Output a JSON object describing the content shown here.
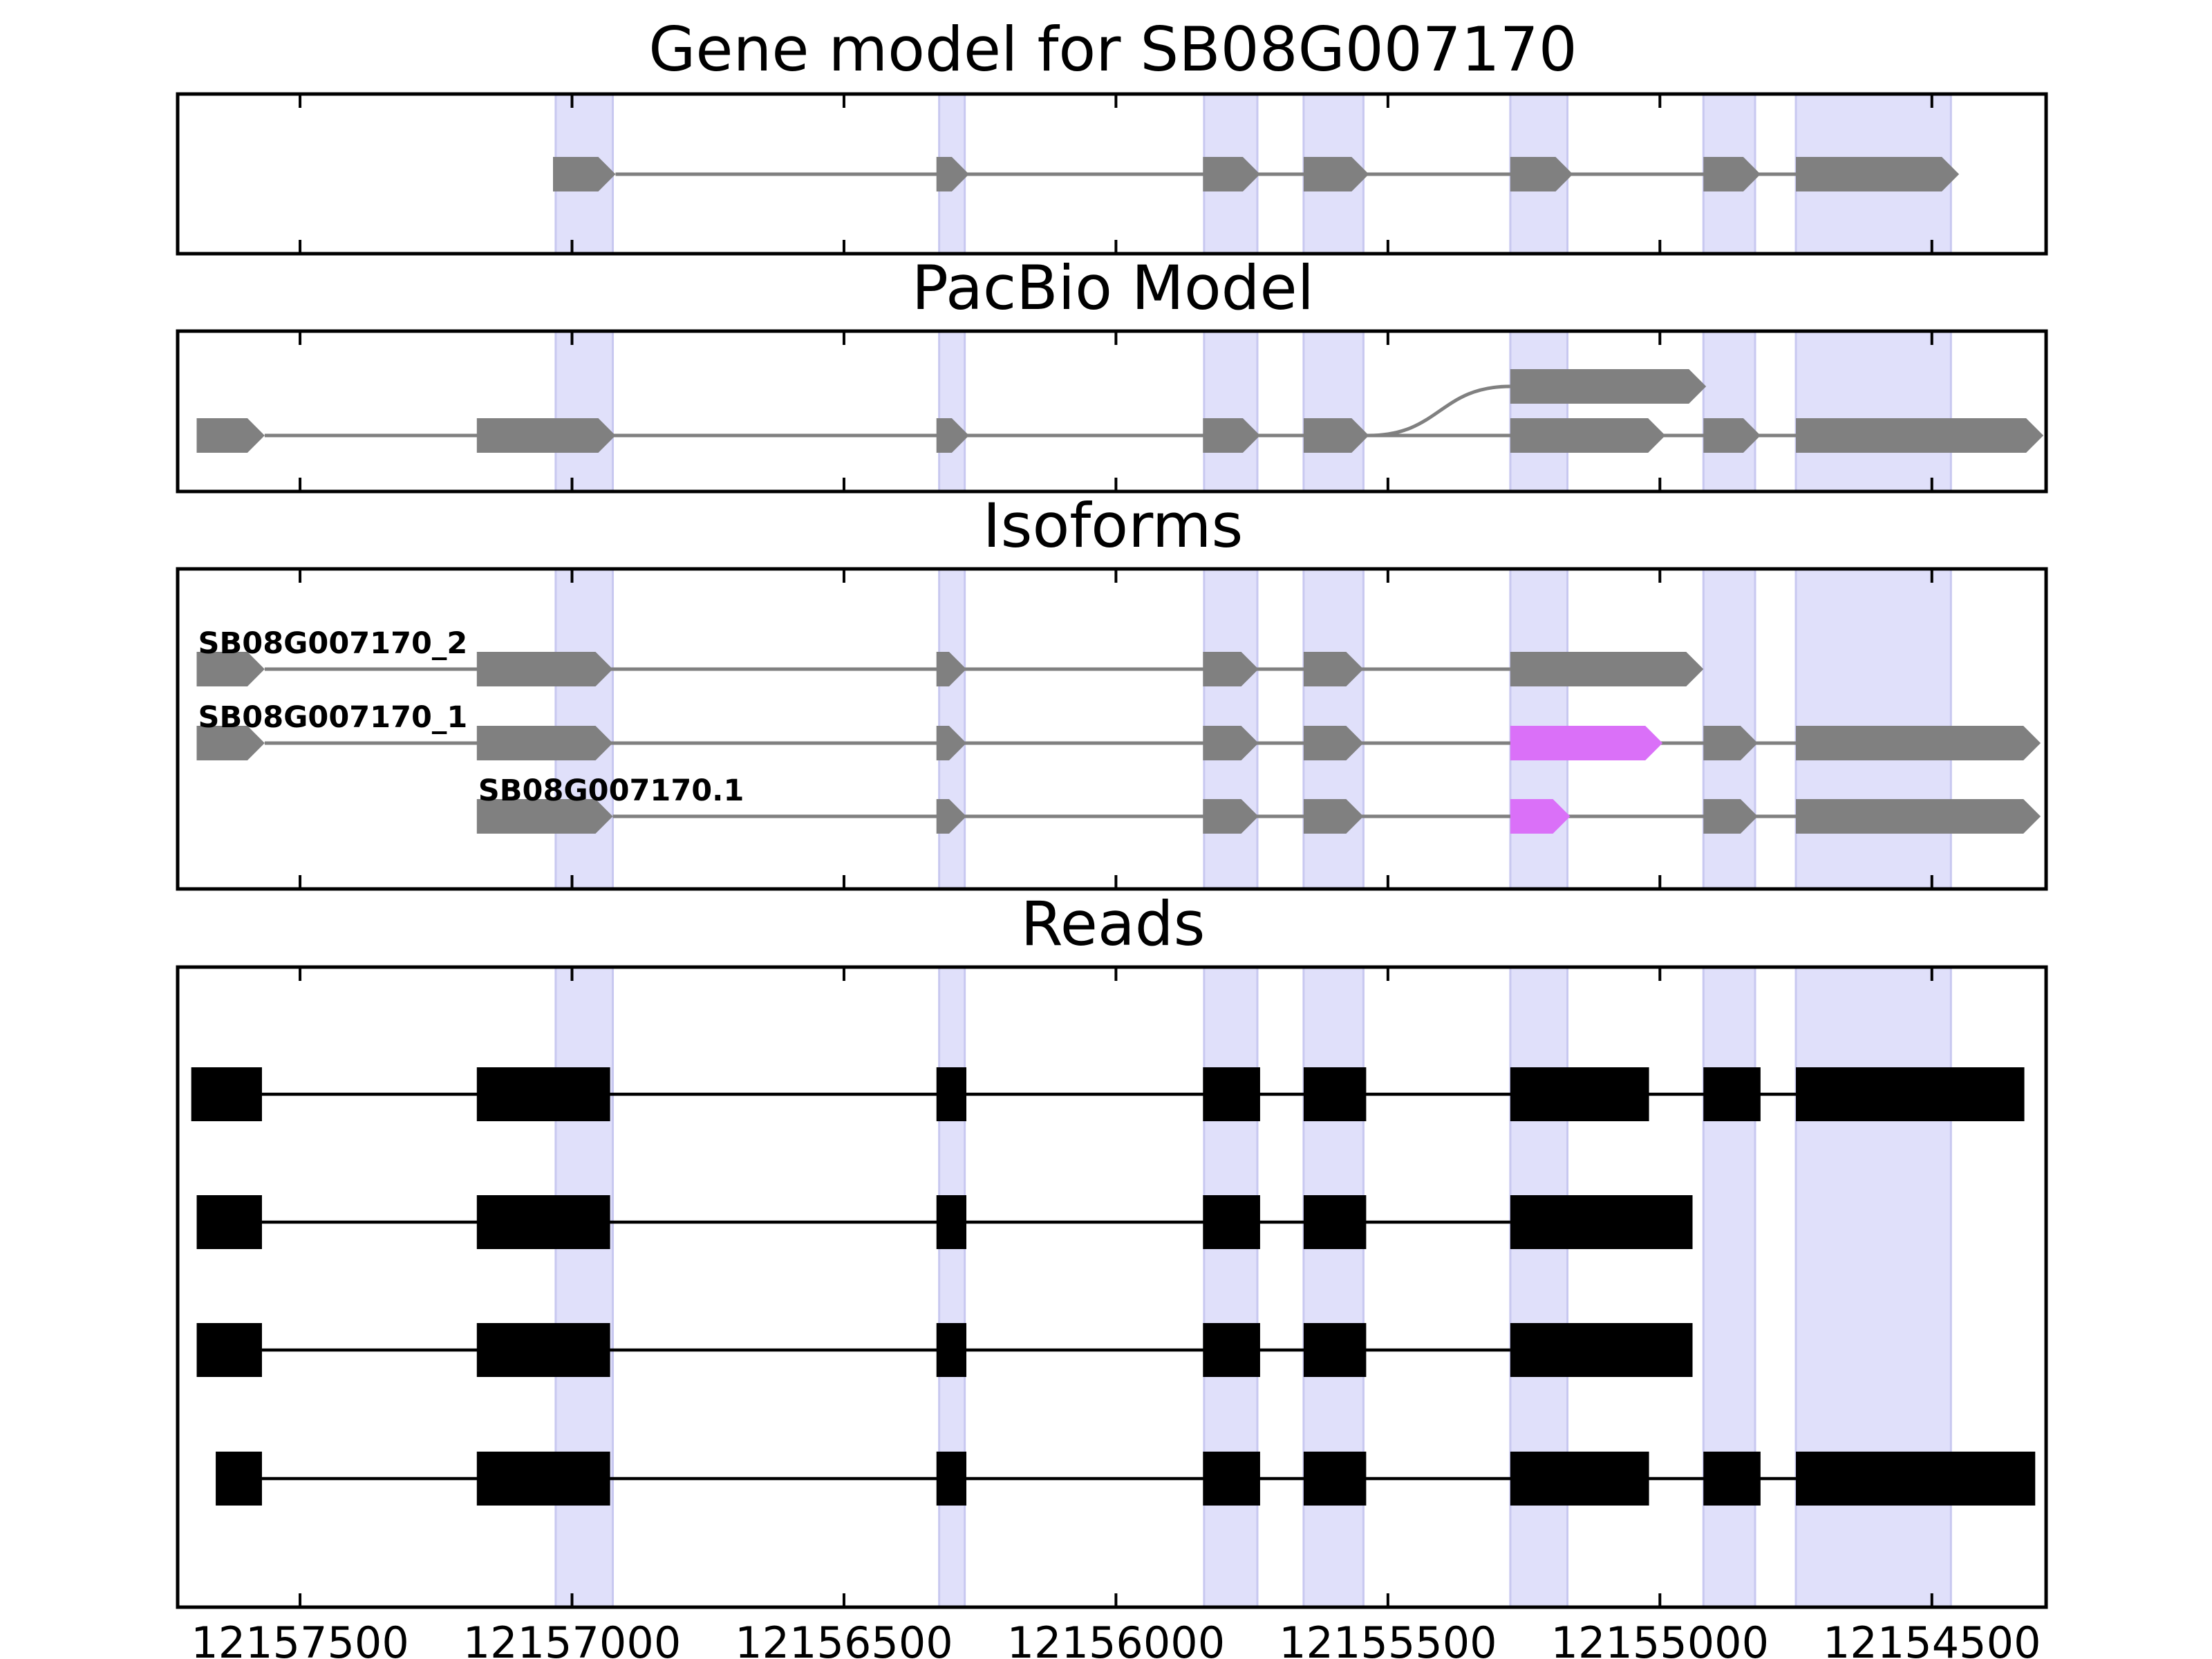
{
  "chart_data": {
    "type": "gene_model",
    "x_axis": {
      "reversed": true,
      "xlim": [
        12157725,
        12154290
      ],
      "ticks": [
        12157500,
        12157000,
        12156500,
        12156000,
        12155500,
        12155000,
        12154500
      ],
      "tick_labels": [
        "12157500",
        "12157000",
        "12156500",
        "12156000",
        "12155500",
        "12155000",
        "12154500"
      ]
    },
    "highlight_color": "#e0e0fa",
    "highlight_regions": [
      [
        12157030,
        12156925
      ],
      [
        12156325,
        12156278
      ],
      [
        12155838,
        12155740
      ],
      [
        12155655,
        12155545
      ],
      [
        12155275,
        12155170
      ],
      [
        12154920,
        12154825
      ],
      [
        12154750,
        12154465
      ]
    ],
    "panels": [
      {
        "title": "Gene model for SB08G007170",
        "kind": "arrows",
        "color": "#808080",
        "tracks": [
          {
            "label": "",
            "exons": [
              [
                12157035,
                12156920
              ],
              [
                12156330,
                12156270
              ],
              [
                12155840,
                12155735
              ],
              [
                12155655,
                12155535
              ],
              [
                12155275,
                12155160
              ],
              [
                12154920,
                12154815
              ],
              [
                12154750,
                12154450
              ]
            ]
          }
        ]
      },
      {
        "title": "PacBio Model",
        "kind": "arrows_branching",
        "color": "#808080",
        "tracks": [
          {
            "label": "",
            "exons": [
              [
                12157690,
                12157565
              ],
              [
                12157175,
                12156920
              ],
              [
                12156330,
                12156270
              ],
              [
                12155840,
                12155735
              ],
              [
                12155655,
                12155535
              ],
              [
                12155275,
                12154990
              ],
              [
                12154920,
                12154815
              ],
              [
                12154750,
                12154295
              ]
            ]
          },
          {
            "label": "",
            "branch_from": [
              12155535,
              0
            ],
            "exons": [
              [
                12155275,
                12154915
              ]
            ]
          }
        ]
      },
      {
        "title": "Isoforms",
        "kind": "arrows_labeled",
        "color": "#808080",
        "highlight_exon_color": "#da70f8",
        "tracks": [
          {
            "label": "SB08G007170_2",
            "exons": [
              [
                12157690,
                12157565
              ],
              [
                12157175,
                12156925
              ],
              [
                12156330,
                12156275
              ],
              [
                12155840,
                12155738
              ],
              [
                12155655,
                12155545
              ],
              [
                12155275,
                12154920
              ]
            ]
          },
          {
            "label": "SB08G007170_1",
            "exons": [
              [
                12157690,
                12157565
              ],
              [
                12157175,
                12156925
              ],
              [
                12156330,
                12156275
              ],
              [
                12155840,
                12155738
              ],
              [
                12155655,
                12155545
              ],
              [
                12155275,
                12154995,
                "#da70f8"
              ],
              [
                12154920,
                12154820
              ],
              [
                12154750,
                12154300
              ]
            ]
          },
          {
            "label": "SB08G007170.1",
            "exons": [
              [
                12157175,
                12156925
              ],
              [
                12156330,
                12156275
              ],
              [
                12155840,
                12155738
              ],
              [
                12155655,
                12155545
              ],
              [
                12155275,
                12155165,
                "#da70f8"
              ],
              [
                12154920,
                12154820
              ],
              [
                12154750,
                12154300
              ]
            ]
          }
        ]
      },
      {
        "title": "Reads",
        "kind": "blocks",
        "color": "#000000",
        "tracks": [
          {
            "label": "",
            "exons": [
              [
                12157700,
                12157570
              ],
              [
                12157175,
                12156930
              ],
              [
                12156330,
                12156275
              ],
              [
                12155840,
                12155735
              ],
              [
                12155655,
                12155540
              ],
              [
                12155275,
                12155020
              ],
              [
                12154920,
                12154815
              ],
              [
                12154750,
                12154330
              ]
            ]
          },
          {
            "label": "",
            "exons": [
              [
                12157690,
                12157570
              ],
              [
                12157175,
                12156930
              ],
              [
                12156330,
                12156275
              ],
              [
                12155840,
                12155735
              ],
              [
                12155655,
                12155540
              ],
              [
                12155275,
                12154940
              ]
            ]
          },
          {
            "label": "",
            "exons": [
              [
                12157690,
                12157570
              ],
              [
                12157175,
                12156930
              ],
              [
                12156330,
                12156275
              ],
              [
                12155840,
                12155735
              ],
              [
                12155655,
                12155540
              ],
              [
                12155275,
                12154940
              ]
            ]
          },
          {
            "label": "",
            "exons": [
              [
                12157655,
                12157570
              ],
              [
                12157175,
                12156930
              ],
              [
                12156330,
                12156275
              ],
              [
                12155840,
                12155735
              ],
              [
                12155655,
                12155540
              ],
              [
                12155275,
                12155020
              ],
              [
                12154920,
                12154815
              ],
              [
                12154750,
                12154310
              ]
            ]
          }
        ]
      }
    ]
  }
}
